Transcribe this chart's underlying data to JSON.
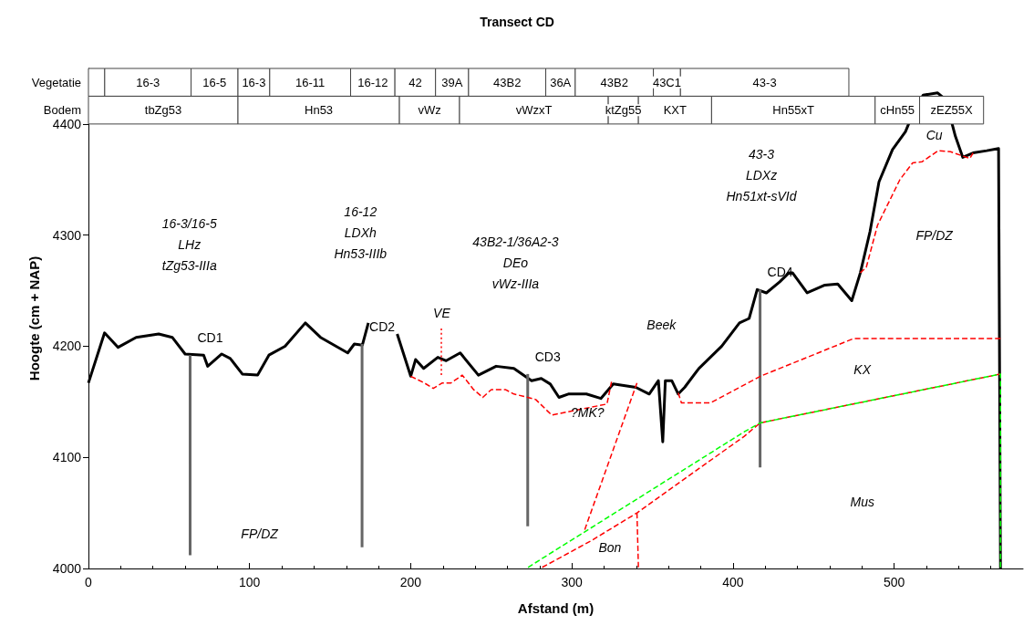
{
  "chart_data": {
    "type": "line",
    "title": "Transect CD",
    "xlabel": "Afstand (m)",
    "ylabel": "Hoogte (cm + NAP)",
    "xlim": [
      0,
      580
    ],
    "xticks": [
      0,
      100,
      200,
      300,
      400,
      500
    ],
    "ylim": [
      4000,
      4450
    ],
    "yticks": [
      4000,
      4100,
      4200,
      4300,
      4400
    ],
    "grid": false,
    "legend": false,
    "marker": "none",
    "series": [
      {
        "color": "#000000",
        "line_style": "solid",
        "x": [
          0,
          10,
          18.4,
          29.6,
          43.6,
          52,
          60,
          71.5,
          74,
          82.7,
          88,
          95.5,
          105,
          112,
          122,
          134.6,
          144,
          160.9,
          165,
          170,
          173.7,
          182,
          191.6,
          200,
          203,
          208,
          216.8,
          222,
          230.7,
          242,
          253,
          264,
          275,
          281,
          286.6,
          292,
          297.8,
          309,
          318,
          325.7,
          339.7,
          348,
          353.7,
          356.4,
          358,
          362,
          366,
          370,
          378.8,
          393,
          404,
          410,
          415,
          420.7,
          429,
          434.6,
          437,
          446,
          457,
          465,
          473.7,
          479,
          485,
          490.6,
          499,
          507,
          513,
          518,
          527,
          532,
          538,
          542.6,
          549,
          557.5,
          564.8,
          566
        ],
        "values": [
          4167,
          4212,
          4199,
          4208,
          4211,
          4208,
          4193,
          4192,
          4182,
          4193,
          4189,
          4175,
          4174,
          4192,
          4200,
          4221,
          4208,
          4194,
          4202,
          4201,
          4221,
          null,
          4211,
          4173,
          4188,
          4180,
          4190,
          4187,
          4194,
          4174,
          4182,
          4180,
          4169,
          4171,
          4166,
          4154,
          4157,
          4157,
          4153,
          4166,
          4163,
          4157,
          4169,
          4114,
          4169,
          4169,
          4157,
          4163,
          4180,
          4200,
          4221,
          4225,
          4251,
          4248,
          4258,
          4266,
          4266,
          4248,
          4255,
          4256,
          4241,
          4266,
          4303,
          4348,
          4377,
          4393,
          4414,
          4426,
          4428,
          4422,
          4389,
          4370,
          4374,
          4376,
          4378,
          4000
        ]
      },
      {
        "color": "#ff0000",
        "line_style": "dashed",
        "x": [
          200,
          208.4,
          214,
          219.6,
          225,
          232,
          239,
          244.7,
          250,
          258.7,
          264,
          269.8,
          277.6,
          287.5,
          321.8,
          324.6
        ],
        "values": [
          4173,
          4167,
          4162,
          4167,
          4167,
          4174,
          4161,
          4154,
          4161,
          4161,
          4157,
          4155,
          4152,
          4138,
          4148,
          4168
        ]
      },
      {
        "color": "#ff0000",
        "line_style": "dashed",
        "x": [
          340.4,
          308
        ],
        "values": [
          4167,
          4035
        ]
      },
      {
        "color": "#ff0000",
        "line_style": "dashed",
        "x": [
          366,
          368,
          386,
          417,
          475,
          566
        ],
        "values": [
          4158,
          4149,
          4149,
          4173,
          4207,
          4207
        ]
      },
      {
        "color": "#ff0000",
        "line_style": "dashed",
        "x": [
          281.6,
          307,
          312,
          340.4,
          407,
          416.8,
          566
        ],
        "values": [
          4001,
          4021,
          4025,
          4050,
          4119,
          4131,
          4175
        ]
      },
      {
        "color": "#ff0000",
        "line_style": "dashed",
        "x": [
          340.4,
          341.3
        ],
        "values": [
          4050,
          4001
        ]
      },
      {
        "color": "#ff0000",
        "line_style": "dashed",
        "x": [
          479,
          482.7,
          489.7,
          503.6,
          511.5,
          517.3,
          527.4,
          535,
          547,
          549
        ],
        "values": [
          4266,
          4271,
          4309,
          4350,
          4365,
          4366,
          4376,
          4375,
          4369,
          4374
        ]
      },
      {
        "color": "#ff0000",
        "line_style": "dotted",
        "x": [
          219,
          219
        ],
        "values": [
          4216,
          4174
        ]
      },
      {
        "color": "#00ff00",
        "line_style": "dashed",
        "x": [
          272.8,
          407,
          416.8,
          566,
          566
        ],
        "values": [
          4001,
          4123,
          4131,
          4175,
          4001
        ]
      },
      {
        "name": "CD1",
        "color": "#666666",
        "line_style": "solid",
        "x": [
          63.1,
          63.1
        ],
        "values": [
          4192,
          4012
        ]
      },
      {
        "name": "CD2",
        "color": "#666666",
        "line_style": "solid",
        "x": [
          169.8,
          169.8
        ],
        "values": [
          4202,
          4019
        ]
      },
      {
        "name": "CD3",
        "color": "#666666",
        "line_style": "solid",
        "x": [
          272.6,
          272.6
        ],
        "values": [
          4175,
          4038
        ]
      },
      {
        "name": "CD4",
        "color": "#666666",
        "line_style": "solid",
        "x": [
          416.8,
          416.8
        ],
        "values": [
          4251,
          4091
        ]
      }
    ],
    "bands": [
      {
        "axis": "x",
        "from": 0,
        "to": 10.1
      },
      {
        "axis": "x",
        "from": 10.1,
        "to": 63.7,
        "label": "16-3"
      },
      {
        "axis": "x",
        "from": 63.7,
        "to": 92.8,
        "label": "16-5"
      },
      {
        "axis": "x",
        "from": 92.8,
        "to": 112.5,
        "label": "16-3"
      },
      {
        "axis": "x",
        "from": 112.5,
        "to": 162.7,
        "label": "16-11"
      },
      {
        "axis": "x",
        "from": 162.7,
        "to": 190.2,
        "label": "16-12"
      },
      {
        "axis": "x",
        "from": 190.2,
        "to": 215.4,
        "label": "42"
      },
      {
        "axis": "x",
        "from": 215.4,
        "to": 235.9,
        "label": "39A"
      },
      {
        "axis": "x",
        "from": 235.9,
        "to": 283.8,
        "label": "43B2"
      },
      {
        "axis": "x",
        "from": 283.8,
        "to": 302.1,
        "label": "36A"
      },
      {
        "axis": "x",
        "from": 302.1,
        "to": 350.6,
        "label": "43B2"
      },
      {
        "axis": "x",
        "from": 350.6,
        "to": 367.4,
        "label": "43C1"
      },
      {
        "axis": "x",
        "from": 367.4,
        "to": 471.9,
        "label": "43-3"
      },
      {
        "axis": "x",
        "from": 0,
        "to": 92.8,
        "label": "tbZg53"
      },
      {
        "axis": "x",
        "from": 92.8,
        "to": 193,
        "label": "Hn53"
      },
      {
        "axis": "x",
        "from": 193,
        "to": 230.3,
        "label": "vWz"
      },
      {
        "axis": "x",
        "from": 230.3,
        "to": 322.6,
        "label": "vWzxT"
      },
      {
        "axis": "x",
        "from": 322.6,
        "to": 341.3,
        "label": "ktZg55"
      },
      {
        "axis": "x",
        "from": 341.3,
        "to": 386.7,
        "label": "KXT"
      },
      {
        "axis": "x",
        "from": 386.7,
        "to": 488.2,
        "label": "Hn55xT"
      },
      {
        "axis": "x",
        "from": 488.2,
        "to": 515.8,
        "label": "cHn55"
      },
      {
        "axis": "x",
        "from": 515.8,
        "to": 555.5,
        "label": "zEZ55X"
      }
    ],
    "annotations": [
      "Vegetatie",
      "Bodem",
      "16-3/16-5\nLHz\ntZg53-IIIa",
      "16-12\nLDXh\nHn53-IIIb",
      "43B2-1/36A2-3\nDEo\nvWz-IIIa",
      "43-3\nLDXz\nHn51xt-sVId",
      "FP/DZ",
      "FP/DZ",
      "VE",
      "Beek",
      "?MK?",
      "KX",
      "Cu",
      "Mus",
      "Bon"
    ]
  }
}
